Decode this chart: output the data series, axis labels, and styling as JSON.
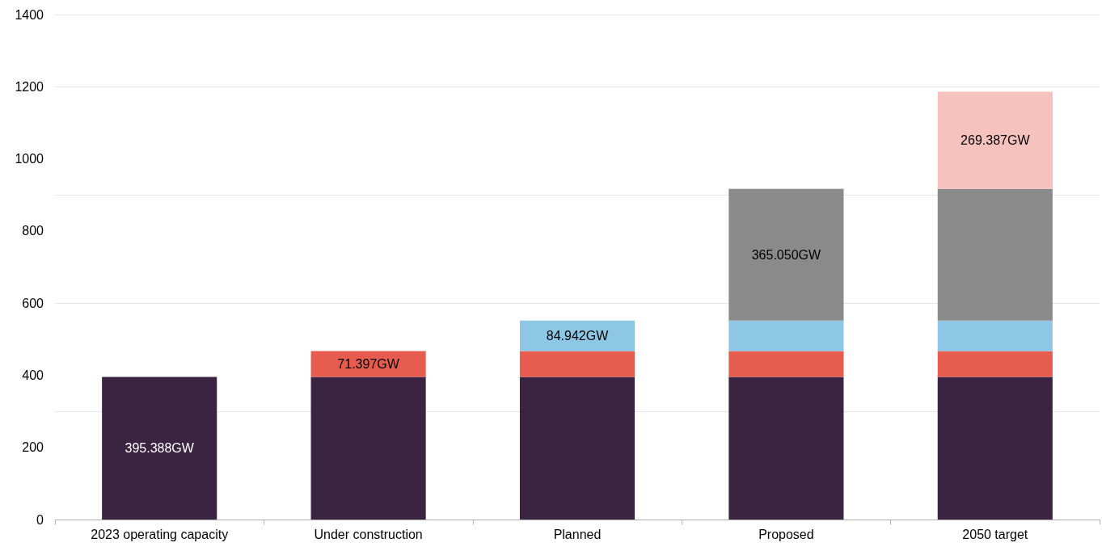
{
  "chart_data": {
    "type": "bar",
    "stacked": true,
    "categories": [
      "2023 operating capacity",
      "Under construction",
      "Planned",
      "Proposed",
      "2050 target"
    ],
    "series": [
      {
        "color": "#3b2442",
        "values": [
          395.388,
          395.388,
          395.388,
          395.388,
          395.388
        ],
        "value_labels": [
          "395.388GW",
          null,
          null,
          null,
          null
        ]
      },
      {
        "color": "#e65c4f",
        "values": [
          null,
          71.397,
          71.397,
          71.397,
          71.397
        ],
        "value_labels": [
          null,
          "71.397GW",
          null,
          null,
          null
        ]
      },
      {
        "color": "#8ec6e6",
        "values": [
          null,
          null,
          84.942,
          84.942,
          84.942
        ],
        "value_labels": [
          null,
          null,
          "84.942GW",
          null,
          null
        ]
      },
      {
        "color": "#8a8a8a",
        "values": [
          null,
          null,
          null,
          365.05,
          365.05
        ],
        "value_labels": [
          null,
          null,
          null,
          "365.050GW",
          null
        ]
      },
      {
        "color": "#f5c2bd",
        "values": [
          null,
          null,
          null,
          null,
          269.387
        ],
        "value_labels": [
          null,
          null,
          null,
          null,
          "269.387GW"
        ]
      }
    ],
    "ylim": [
      0,
      1400
    ],
    "yticks": [
      0,
      200,
      400,
      600,
      800,
      1000,
      1200,
      1400
    ],
    "grid": "y"
  }
}
